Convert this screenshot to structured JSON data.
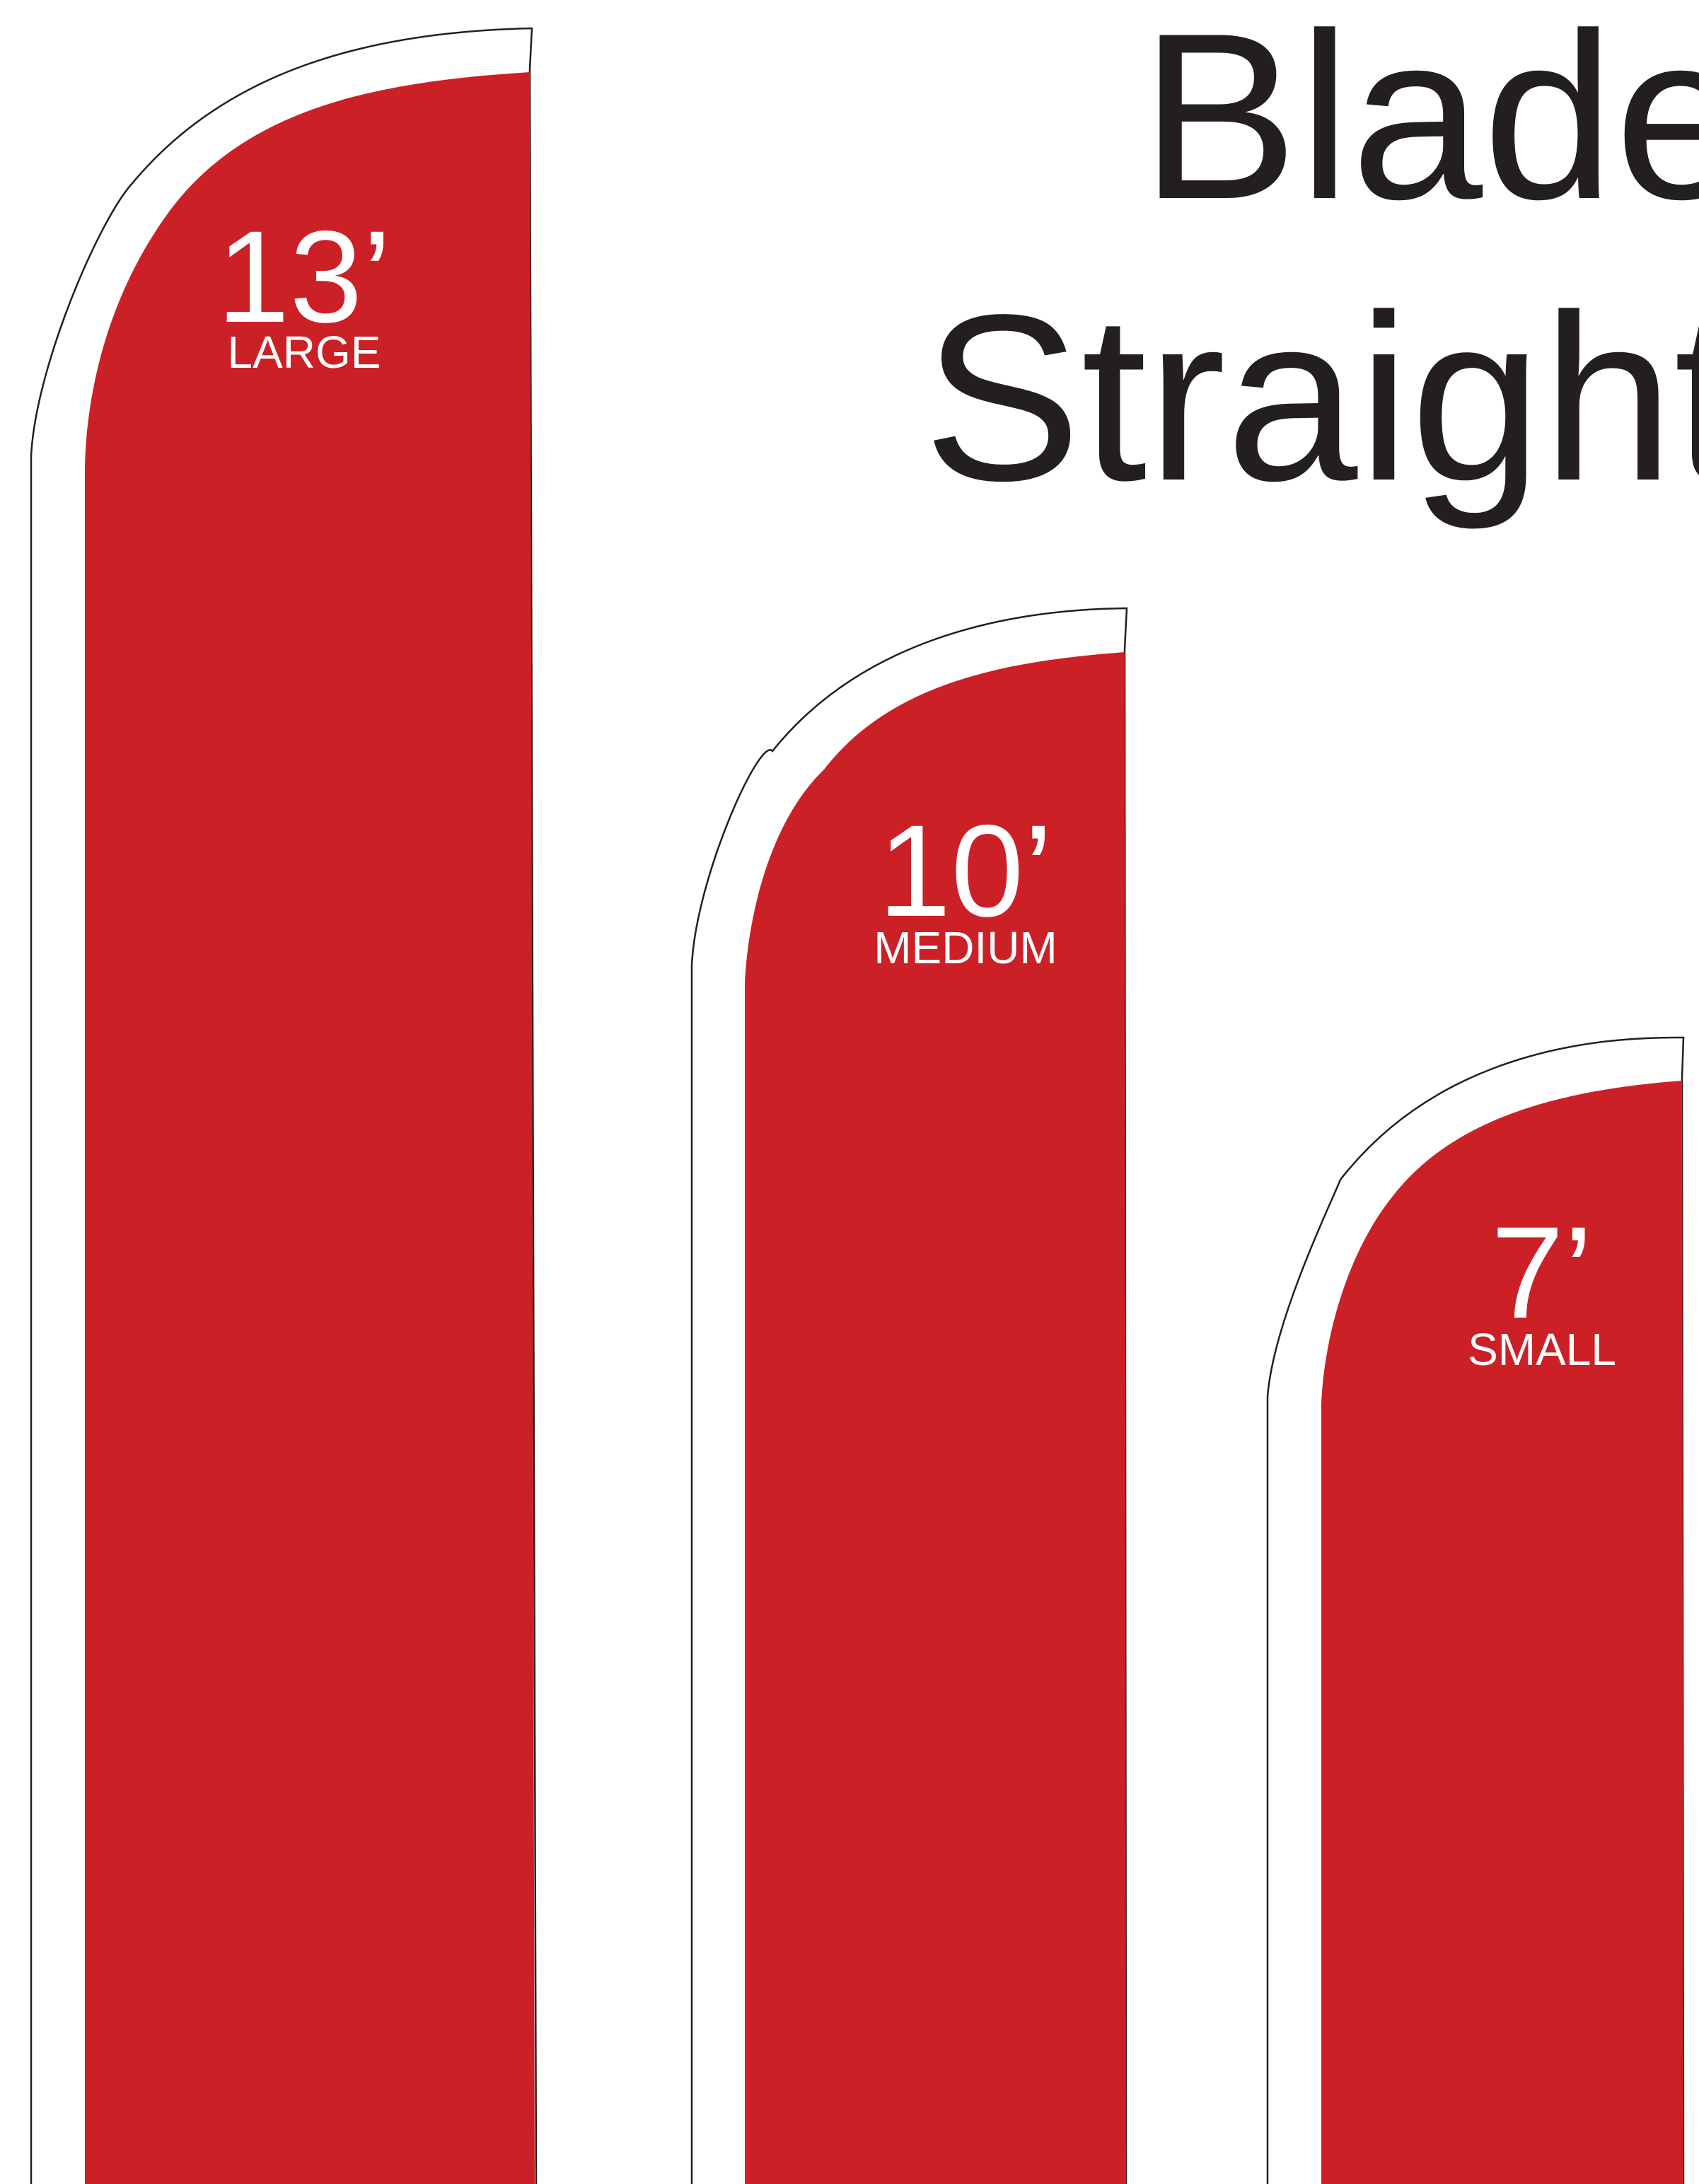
{
  "title": {
    "line1": "Blade",
    "line2": "Straight"
  },
  "colors": {
    "flag_fill": "#cc2027",
    "outline": "#231f20",
    "title_text": "#231f20",
    "label_text": "#ffffff",
    "background": "#ffffff"
  },
  "flags": [
    {
      "id": "large",
      "size_label": "13’",
      "name_label": "LARGE"
    },
    {
      "id": "medium",
      "size_label": "10’",
      "name_label": "MEDIUM"
    },
    {
      "id": "small",
      "size_label": "7’",
      "name_label": "SMALL"
    }
  ]
}
